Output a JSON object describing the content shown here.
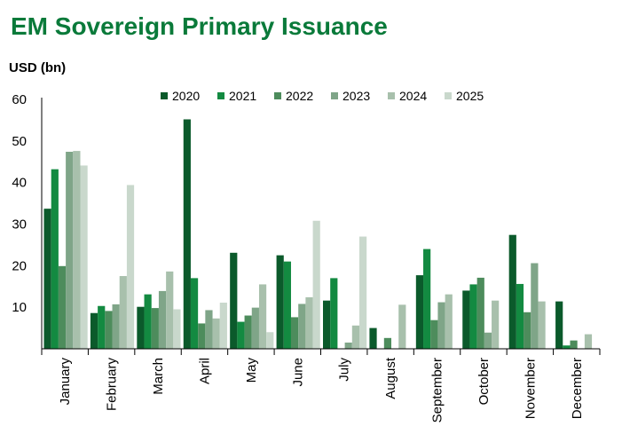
{
  "chart_data": {
    "type": "bar",
    "title": "EM Sovereign Primary Issuance",
    "ylabel": "USD (bn)",
    "xlabel": "",
    "ylim": [
      0,
      60
    ],
    "yticks": [
      10,
      20,
      30,
      40,
      50,
      60
    ],
    "grid": false,
    "legend_position": "top-center",
    "categories": [
      "January",
      "February",
      "March",
      "April",
      "May",
      "June",
      "July",
      "August",
      "September",
      "October",
      "November",
      "December"
    ],
    "series": [
      {
        "name": "2020",
        "color": "#0b5a2b",
        "values": [
          33.7,
          8.6,
          10.1,
          55.2,
          23.1,
          22.5,
          11.6,
          5.0,
          17.7,
          14.0,
          27.4,
          11.4
        ]
      },
      {
        "name": "2021",
        "color": "#138a41",
        "values": [
          43.2,
          10.3,
          13.1,
          17.0,
          6.5,
          21.0,
          17.0,
          0,
          24.0,
          15.5,
          15.6,
          0.8
        ]
      },
      {
        "name": "2022",
        "color": "#4d8c5c",
        "values": [
          19.9,
          9.1,
          9.8,
          6.1,
          8.0,
          7.6,
          0,
          2.6,
          6.9,
          17.1,
          8.8,
          2.0
        ]
      },
      {
        "name": "2023",
        "color": "#7fa588",
        "values": [
          47.4,
          10.7,
          13.9,
          9.3,
          9.9,
          10.8,
          1.5,
          0,
          11.2,
          3.9,
          20.6,
          0
        ]
      },
      {
        "name": "2024",
        "color": "#a8c0ac",
        "values": [
          47.6,
          17.5,
          18.6,
          7.3,
          15.5,
          12.4,
          5.6,
          10.6,
          13.1,
          11.6,
          11.4,
          3.5
        ]
      },
      {
        "name": "2025",
        "color": "#c9d8cc",
        "values": [
          44.1,
          39.4,
          9.5,
          11.1,
          4.0,
          30.8,
          27.0,
          0,
          0,
          0,
          0,
          0
        ]
      }
    ]
  }
}
